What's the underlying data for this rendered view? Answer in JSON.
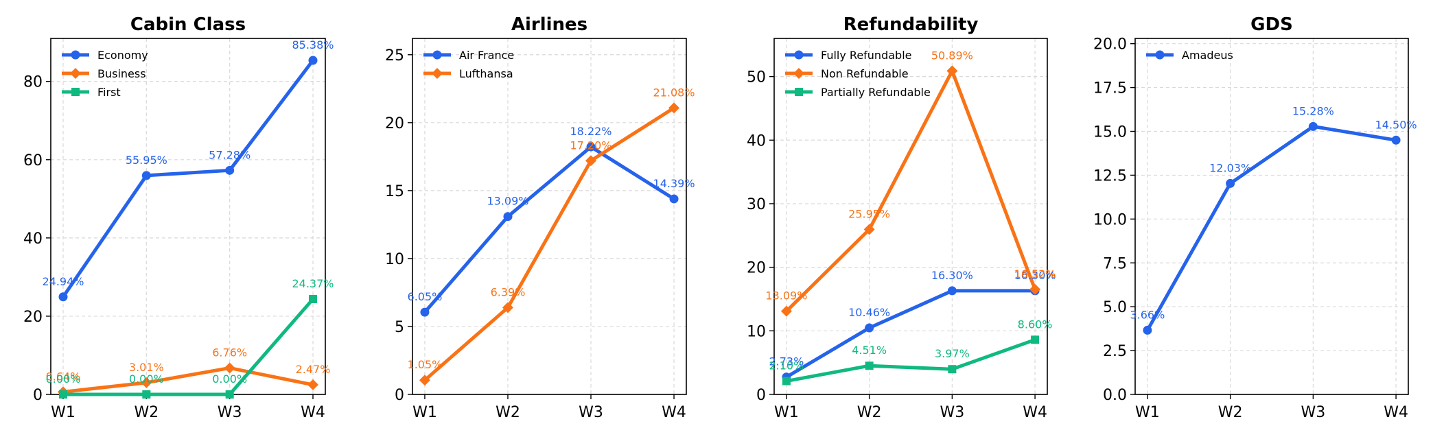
{
  "chart_data": [
    {
      "type": "line",
      "title": "Cabin Class",
      "categories": [
        "W1",
        "W2",
        "W3",
        "W4"
      ],
      "ylim": [
        0,
        91
      ],
      "yticks": [
        0,
        20,
        40,
        60,
        80
      ],
      "series": [
        {
          "name": "Economy",
          "values": [
            24.94,
            55.95,
            57.28,
            85.38
          ],
          "labels": [
            "24.94%",
            "55.95%",
            "57.28%",
            "85.38%"
          ],
          "color": "#2563eb",
          "marker": "circle"
        },
        {
          "name": "Business",
          "values": [
            0.64,
            3.01,
            6.76,
            2.47
          ],
          "labels": [
            "0.64%",
            "3.01%",
            "6.76%",
            "2.47%"
          ],
          "color": "#f97316",
          "marker": "diamond"
        },
        {
          "name": "First",
          "values": [
            0.0,
            0.0,
            0.0,
            24.37
          ],
          "labels": [
            "0.00%",
            "0.00%",
            "0.00%",
            "24.37%"
          ],
          "color": "#10b981",
          "marker": "square"
        }
      ]
    },
    {
      "type": "line",
      "title": "Airlines",
      "categories": [
        "W1",
        "W2",
        "W3",
        "W4"
      ],
      "ylim": [
        0,
        26.2
      ],
      "yticks": [
        0,
        5,
        10,
        15,
        20,
        25
      ],
      "series": [
        {
          "name": "Air France",
          "values": [
            6.05,
            13.09,
            18.22,
            14.39
          ],
          "labels": [
            "6.05%",
            "13.09%",
            "18.22%",
            "14.39%"
          ],
          "color": "#2563eb",
          "marker": "circle"
        },
        {
          "name": "Lufthansa",
          "values": [
            1.05,
            6.39,
            17.2,
            21.08
          ],
          "labels": [
            "1.05%",
            "6.39%",
            "17.20%",
            "21.08%"
          ],
          "color": "#f97316",
          "marker": "diamond"
        }
      ]
    },
    {
      "type": "line",
      "title": "Refundability",
      "categories": [
        "W1",
        "W2",
        "W3",
        "W4"
      ],
      "ylim": [
        0,
        56
      ],
      "yticks": [
        0,
        10,
        20,
        30,
        40,
        50
      ],
      "series": [
        {
          "name": "Fully Refundable",
          "values": [
            2.73,
            10.46,
            16.3,
            16.3
          ],
          "labels": [
            "2.73%",
            "10.46%",
            "16.30%",
            "16.30%"
          ],
          "color": "#2563eb",
          "marker": "circle"
        },
        {
          "name": "Non Refundable",
          "values": [
            13.09,
            25.95,
            50.89,
            16.52
          ],
          "labels": [
            "13.09%",
            "25.95%",
            "50.89%",
            "16.52%"
          ],
          "color": "#f97316",
          "marker": "diamond"
        },
        {
          "name": "Partially Refundable",
          "values": [
            2.1,
            4.51,
            3.97,
            8.6
          ],
          "labels": [
            "2.10%",
            "4.51%",
            "3.97%",
            "8.60%"
          ],
          "color": "#10b981",
          "marker": "square"
        }
      ]
    },
    {
      "type": "line",
      "title": "GDS",
      "categories": [
        "W1",
        "W2",
        "W3",
        "W4"
      ],
      "ylim": [
        0,
        20.3
      ],
      "yticks": [
        0.0,
        2.5,
        5.0,
        7.5,
        10.0,
        12.5,
        15.0,
        17.5,
        20.0
      ],
      "ytick_labels": [
        "0.0",
        "2.5",
        "5.0",
        "7.5",
        "10.0",
        "12.5",
        "15.0",
        "17.5",
        "20.0"
      ],
      "series": [
        {
          "name": "Amadeus",
          "values": [
            3.66,
            12.03,
            15.28,
            14.5
          ],
          "labels": [
            "3.66%",
            "12.03%",
            "15.28%",
            "14.50%"
          ],
          "color": "#2563eb",
          "marker": "circle"
        }
      ]
    }
  ]
}
